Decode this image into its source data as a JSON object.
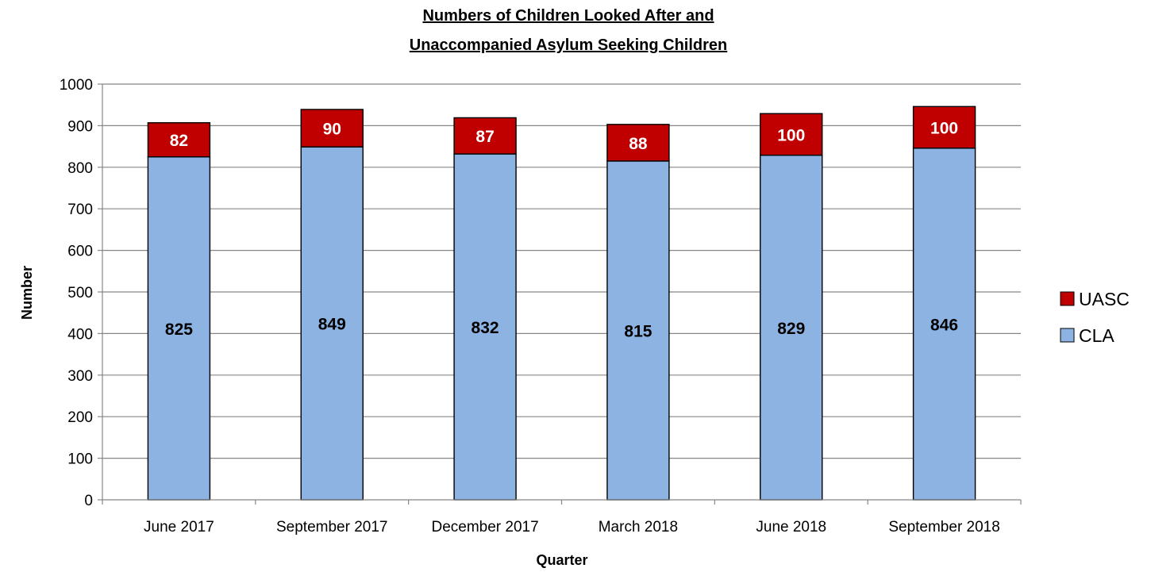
{
  "chart_data": {
    "type": "bar",
    "stacked": true,
    "title_lines": [
      "Numbers of Children Looked After and",
      "Unaccompanied Asylum Seeking Children"
    ],
    "xlabel": "Quarter",
    "ylabel": "Number",
    "ylim": [
      0,
      1000
    ],
    "yticks": [
      0,
      100,
      200,
      300,
      400,
      500,
      600,
      700,
      800,
      900,
      1000
    ],
    "categories": [
      "June 2017",
      "September 2017",
      "December 2017",
      "March 2018",
      "June 2018",
      "September 2018"
    ],
    "series": [
      {
        "name": "CLA",
        "color": "#8DB3E2",
        "values": [
          825,
          849,
          832,
          815,
          829,
          846
        ]
      },
      {
        "name": "UASC",
        "color": "#C00000",
        "values": [
          82,
          90,
          87,
          88,
          100,
          100
        ]
      }
    ],
    "legend": {
      "position": "right",
      "order": [
        "UASC",
        "CLA"
      ]
    },
    "grid": true
  }
}
